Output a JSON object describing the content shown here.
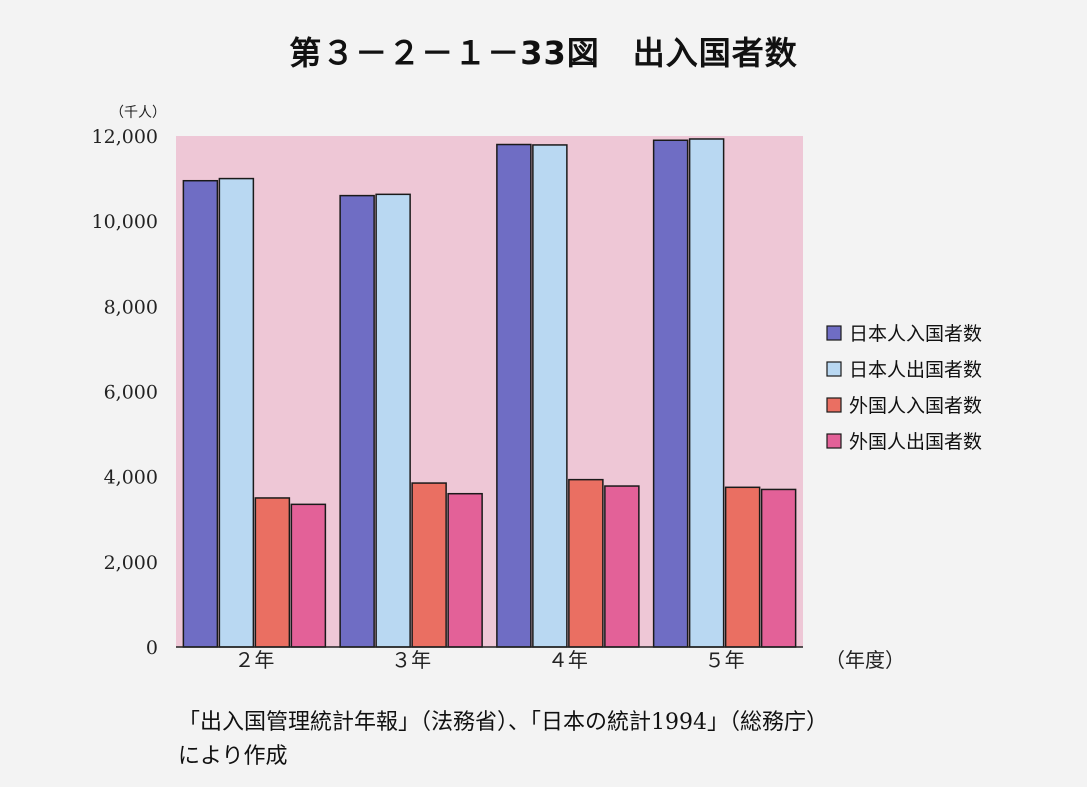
{
  "title": "第３－２－１－33図　出入国者数",
  "chart_data": {
    "type": "bar",
    "unit_label": "（千人）",
    "xaxis_suffix": "（年度）",
    "categories": [
      "２年",
      "３年",
      "４年",
      "５年"
    ],
    "ylim": [
      0,
      12000
    ],
    "yticks": [
      0,
      2000,
      4000,
      6000,
      8000,
      10000,
      12000
    ],
    "ytick_labels": [
      "0",
      "2,000",
      "4,000",
      "6,000",
      "8,000",
      "10,000",
      "12,000"
    ],
    "grid": false,
    "legend_position": "right",
    "plot_background": "#eec7d6",
    "series": [
      {
        "name": "日本人入国者数",
        "color": "#6f6dc4",
        "values": [
          10950,
          10600,
          11800,
          11900
        ]
      },
      {
        "name": "日本人出国者数",
        "color": "#b9d8f2",
        "values": [
          11000,
          10630,
          11790,
          11930
        ]
      },
      {
        "name": "外国人入国者数",
        "color": "#ea6f62",
        "values": [
          3500,
          3850,
          3930,
          3750
        ]
      },
      {
        "name": "外国人出国者数",
        "color": "#e36198",
        "values": [
          3350,
          3600,
          3780,
          3700
        ]
      }
    ]
  },
  "source": {
    "line1": "「出入国管理統計年報」（法務省）、「日本の統計1994」（総務庁）",
    "line2": "により作成"
  }
}
